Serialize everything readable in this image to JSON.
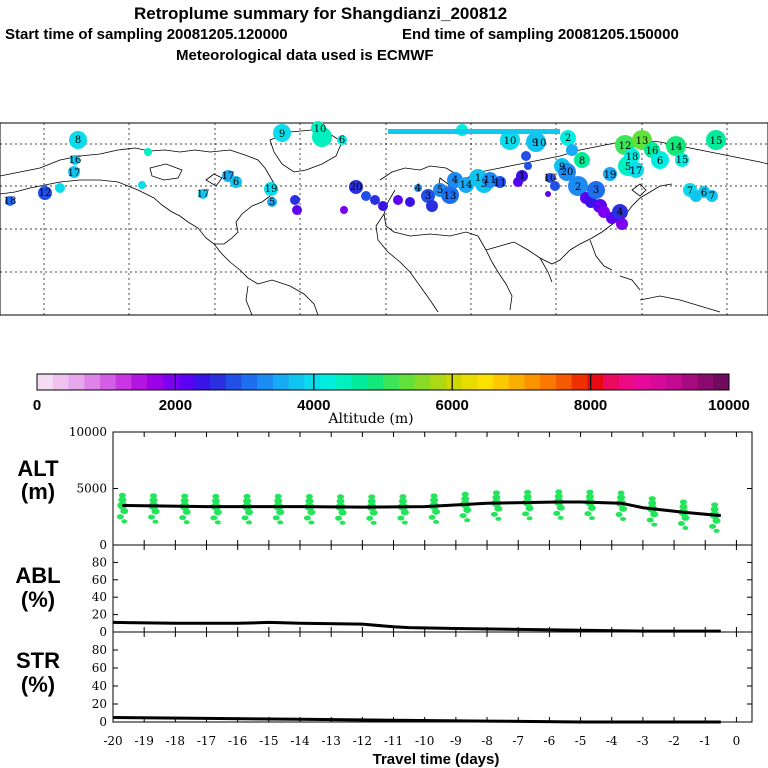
{
  "titles": {
    "main": "Retroplume summary for Shangdianzi_200812",
    "start": "Start time of sampling 20081205.120000",
    "end": "End time of sampling 20081205.150000",
    "met": "Meteorological data used is ECMWF"
  },
  "colorbar": {
    "ticks": [
      "0",
      "2000",
      "4000",
      "6000",
      "8000",
      "10000"
    ],
    "label": "Altitude (m)",
    "colors": [
      "#f5dcf5",
      "#f0c2f0",
      "#e8a8ee",
      "#df85ea",
      "#d45ee6",
      "#c936e2",
      "#b314e0",
      "#9b00e6",
      "#7d00ee",
      "#5e00f2",
      "#3a14e6",
      "#2a30e0",
      "#2050e8",
      "#1e6ef0",
      "#1c8cf4",
      "#18aaf4",
      "#10c4f0",
      "#0adcec",
      "#00eee0",
      "#00f0c0",
      "#00ec9c",
      "#14e87a",
      "#3ce45a",
      "#62e03c",
      "#88dc28",
      "#acd814",
      "#ccd800",
      "#e8dc00",
      "#fce000",
      "#fcc800",
      "#fcae00",
      "#fc9400",
      "#fc7800",
      "#f65a00",
      "#ee3000",
      "#e80a14",
      "#ea0a60",
      "#ec0a86",
      "#e60a9c",
      "#d80a9a",
      "#c40a90",
      "#a80a80",
      "#8c0a70",
      "#700a5c"
    ]
  },
  "chart_data": [
    {
      "type": "scatter",
      "name": "ALT",
      "title": "ALT",
      "ylabel": "(m)",
      "ylim": [
        0,
        10000
      ],
      "yticks": [
        "10000",
        "5000",
        "0"
      ],
      "x_days": [
        -19.7,
        -18.7,
        -17.7,
        -16.7,
        -15.7,
        -14.7,
        -13.7,
        -12.7,
        -11.7,
        -10.7,
        -9.7,
        -8.7,
        -7.7,
        -6.7,
        -5.7,
        -4.7,
        -3.7,
        -2.7,
        -1.7,
        -0.7
      ],
      "median_line": [
        [
          -19.7,
          3500
        ],
        [
          -17,
          3400
        ],
        [
          -14,
          3400
        ],
        [
          -12,
          3350
        ],
        [
          -10,
          3400
        ],
        [
          -8,
          3700
        ],
        [
          -5.7,
          3800
        ],
        [
          -5,
          3800
        ],
        [
          -3.7,
          3700
        ],
        [
          -3,
          3300
        ],
        [
          -1.7,
          2900
        ],
        [
          -0.5,
          2600
        ]
      ],
      "plume_points_color": "#22e65a"
    },
    {
      "type": "line",
      "name": "ABL",
      "title": "ABL",
      "ylabel": "(%)",
      "ylim": [
        0,
        100
      ],
      "yticks": [
        "80",
        "60",
        "40",
        "20",
        "0"
      ],
      "line": [
        [
          -20,
          11
        ],
        [
          -18,
          10
        ],
        [
          -16,
          10
        ],
        [
          -15,
          11
        ],
        [
          -14,
          10
        ],
        [
          -12,
          9
        ],
        [
          -11,
          6
        ],
        [
          -10.5,
          5
        ],
        [
          -9,
          4
        ],
        [
          -7,
          3
        ],
        [
          -5,
          2
        ],
        [
          -3,
          1
        ],
        [
          -1,
          1
        ],
        [
          -0.5,
          1
        ]
      ]
    },
    {
      "type": "line",
      "name": "STR",
      "title": "STR",
      "ylabel": "(%)",
      "ylim": [
        0,
        100
      ],
      "yticks": [
        "80",
        "60",
        "40",
        "20",
        "0"
      ],
      "line": [
        [
          -20,
          5
        ],
        [
          -17,
          4
        ],
        [
          -14,
          3
        ],
        [
          -11,
          2
        ],
        [
          -8,
          1
        ],
        [
          -5,
          0
        ],
        [
          -0.5,
          0
        ]
      ]
    }
  ],
  "xaxis": {
    "label": "Travel time (days)",
    "ticks": [
      "-20",
      "-19",
      "-18",
      "-17",
      "-16",
      "-15",
      "-14",
      "-13",
      "-12",
      "-11",
      "-10",
      "-9",
      "-8",
      "-7",
      "-6",
      "-5",
      "-4",
      "-3",
      "-2",
      "-1",
      "0"
    ]
  },
  "map_labels": [
    "8",
    "9",
    "10",
    "10",
    "9",
    "2",
    "12",
    "13",
    "14",
    "15",
    "16",
    "17",
    "18",
    "19",
    "20",
    "13",
    "14",
    "1",
    "2",
    "3",
    "4",
    "5",
    "6",
    "7",
    "6",
    "7",
    "8",
    "9",
    "10",
    "11",
    "12",
    "17",
    "17",
    "6",
    "5",
    "6",
    "4",
    "3",
    "5",
    "4",
    "3",
    "11",
    "1",
    "10",
    "20",
    "19",
    "18",
    "17",
    "16",
    "15"
  ]
}
